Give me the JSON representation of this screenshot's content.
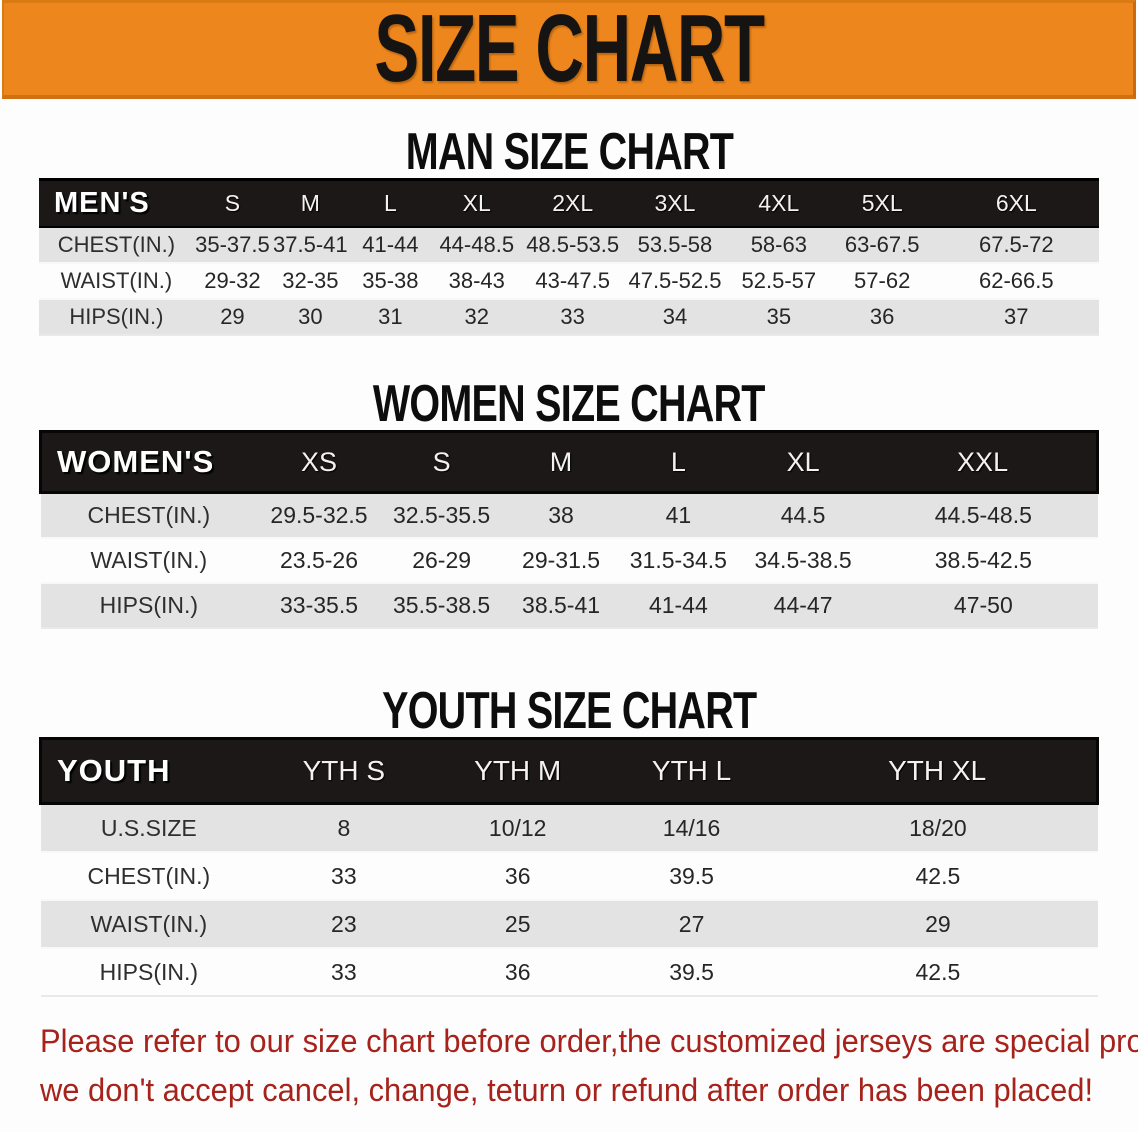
{
  "banner": {
    "title": "SIZE CHART"
  },
  "colors": {
    "banner_bg": "#EC861D",
    "header_bar": "#1B1817",
    "row_stripe": "#E4E3E3",
    "footer_text": "#A6221A"
  },
  "sections": {
    "men": {
      "heading": "MAN SIZE CHART",
      "table": {
        "header_label": "MEN'S",
        "sizes": [
          "S",
          "M",
          "L",
          "XL",
          "2XL",
          "3XL",
          "4XL",
          "5XL",
          "6XL"
        ],
        "rows": [
          {
            "label": "CHEST(IN.)",
            "values": [
              "35-37.5",
              "37.5-41",
              "41-44",
              "44-48.5",
              "48.5-53.5",
              "53.5-58",
              "58-63",
              "63-67.5",
              "67.5-72"
            ]
          },
          {
            "label": "WAIST(IN.)",
            "values": [
              "29-32",
              "32-35",
              "35-38",
              "38-43",
              "43-47.5",
              "47.5-52.5",
              "52.5-57",
              "57-62",
              "62-66.5"
            ]
          },
          {
            "label": "HIPS(IN.)",
            "values": [
              "29",
              "30",
              "31",
              "32",
              "33",
              "34",
              "35",
              "36",
              "37"
            ]
          }
        ]
      }
    },
    "women": {
      "heading": "WOMEN SIZE CHART",
      "table": {
        "header_label": "WOMEN'S",
        "sizes": [
          "XS",
          "S",
          "M",
          "L",
          "XL",
          "XXL"
        ],
        "rows": [
          {
            "label": "CHEST(IN.)",
            "values": [
              "29.5-32.5",
              "32.5-35.5",
              "38",
              "41",
              "44.5",
              "44.5-48.5"
            ]
          },
          {
            "label": "WAIST(IN.)",
            "values": [
              "23.5-26",
              "26-29",
              "29-31.5",
              "31.5-34.5",
              "34.5-38.5",
              "38.5-42.5"
            ]
          },
          {
            "label": "HIPS(IN.)",
            "values": [
              "33-35.5",
              "35.5-38.5",
              "38.5-41",
              "41-44",
              "44-47",
              "47-50"
            ]
          }
        ]
      }
    },
    "youth": {
      "heading": "YOUTH SIZE CHART",
      "table": {
        "header_label": "YOUTH",
        "sizes": [
          "YTH S",
          "YTH M",
          "YTH L",
          "YTH XL"
        ],
        "rows": [
          {
            "label": "U.S.SIZE",
            "values": [
              "8",
              "10/12",
              "14/16",
              "18/20"
            ]
          },
          {
            "label": "CHEST(IN.)",
            "values": [
              "33",
              "36",
              "39.5",
              "42.5"
            ]
          },
          {
            "label": "WAIST(IN.)",
            "values": [
              "23",
              "25",
              "27",
              "29"
            ]
          },
          {
            "label": "HIPS(IN.)",
            "values": [
              "33",
              "36",
              "39.5",
              "42.5"
            ]
          }
        ]
      }
    }
  },
  "footer": {
    "line1": "Please refer to our size chart before order,the customized jerseys are special products,",
    "line2": "we don't accept cancel, change, teturn or refund after order has been placed!"
  }
}
